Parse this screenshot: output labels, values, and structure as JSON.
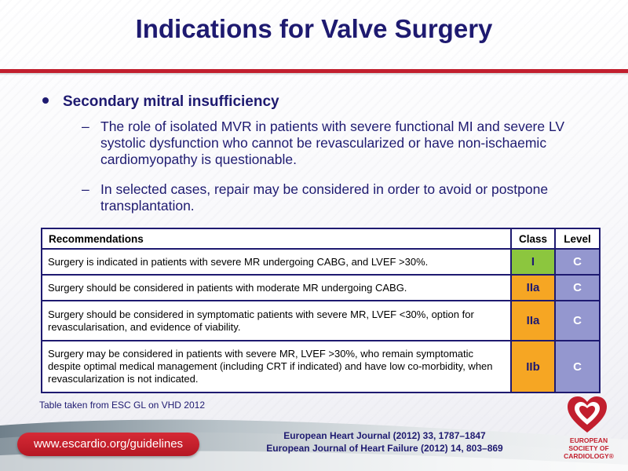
{
  "slide": {
    "title": "Indications for Valve Surgery",
    "bullet": "Secondary mitral insufficiency",
    "sub_bullets": [
      {
        "dash": "–",
        "text": "The role of isolated MVR in patients with severe functional MI and severe LV systolic dysfunction who cannot be revascularized or have non-ischaemic cardiomyopathy is questionable."
      },
      {
        "dash": "–",
        "text": "In selected cases, repair may be considered in order to avoid or postpone transplantation."
      }
    ]
  },
  "table": {
    "headers": {
      "recommendations": "Recommendations",
      "class": "Class",
      "level": "Level"
    },
    "rows": [
      {
        "text": "Surgery is indicated in patients with severe MR undergoing CABG, and LVEF >30%.",
        "class": "I",
        "level": "C",
        "class_color": "#8cc63e"
      },
      {
        "text": "Surgery should be considered in patients with moderate MR undergoing CABG.",
        "class": "IIa",
        "level": "C",
        "class_color": "#f6a623"
      },
      {
        "text": "Surgery should be considered in symptomatic patients with severe MR, LVEF <30%, option for revascularisation, and evidence of viability.",
        "class": "IIa",
        "level": "C",
        "class_color": "#f6a623"
      },
      {
        "text": "Surgery may be considered in patients with severe MR, LVEF >30%, who remain symptomatic despite optimal medical management (including CRT if indicated) and have low co-morbidity, when revascularization is not indicated.",
        "class": "IIb",
        "level": "C",
        "class_color": "#f6a623"
      }
    ],
    "level_color": "#9497cf"
  },
  "footer": {
    "source": "Table taken from ESC GL on VHD 2012",
    "url": "www.escardio.org/guidelines",
    "journal_line1": "European Heart Journal (2012) 33, 1787–1847",
    "journal_line2": "European Journal of Heart Failure (2012) 14, 803–869",
    "logo_line1": "EUROPEAN",
    "logo_line2": "SOCIETY OF",
    "logo_line3": "CARDIOLOGY®"
  },
  "colors": {
    "title": "#1e1a70",
    "accent_red": "#c21f2e"
  }
}
